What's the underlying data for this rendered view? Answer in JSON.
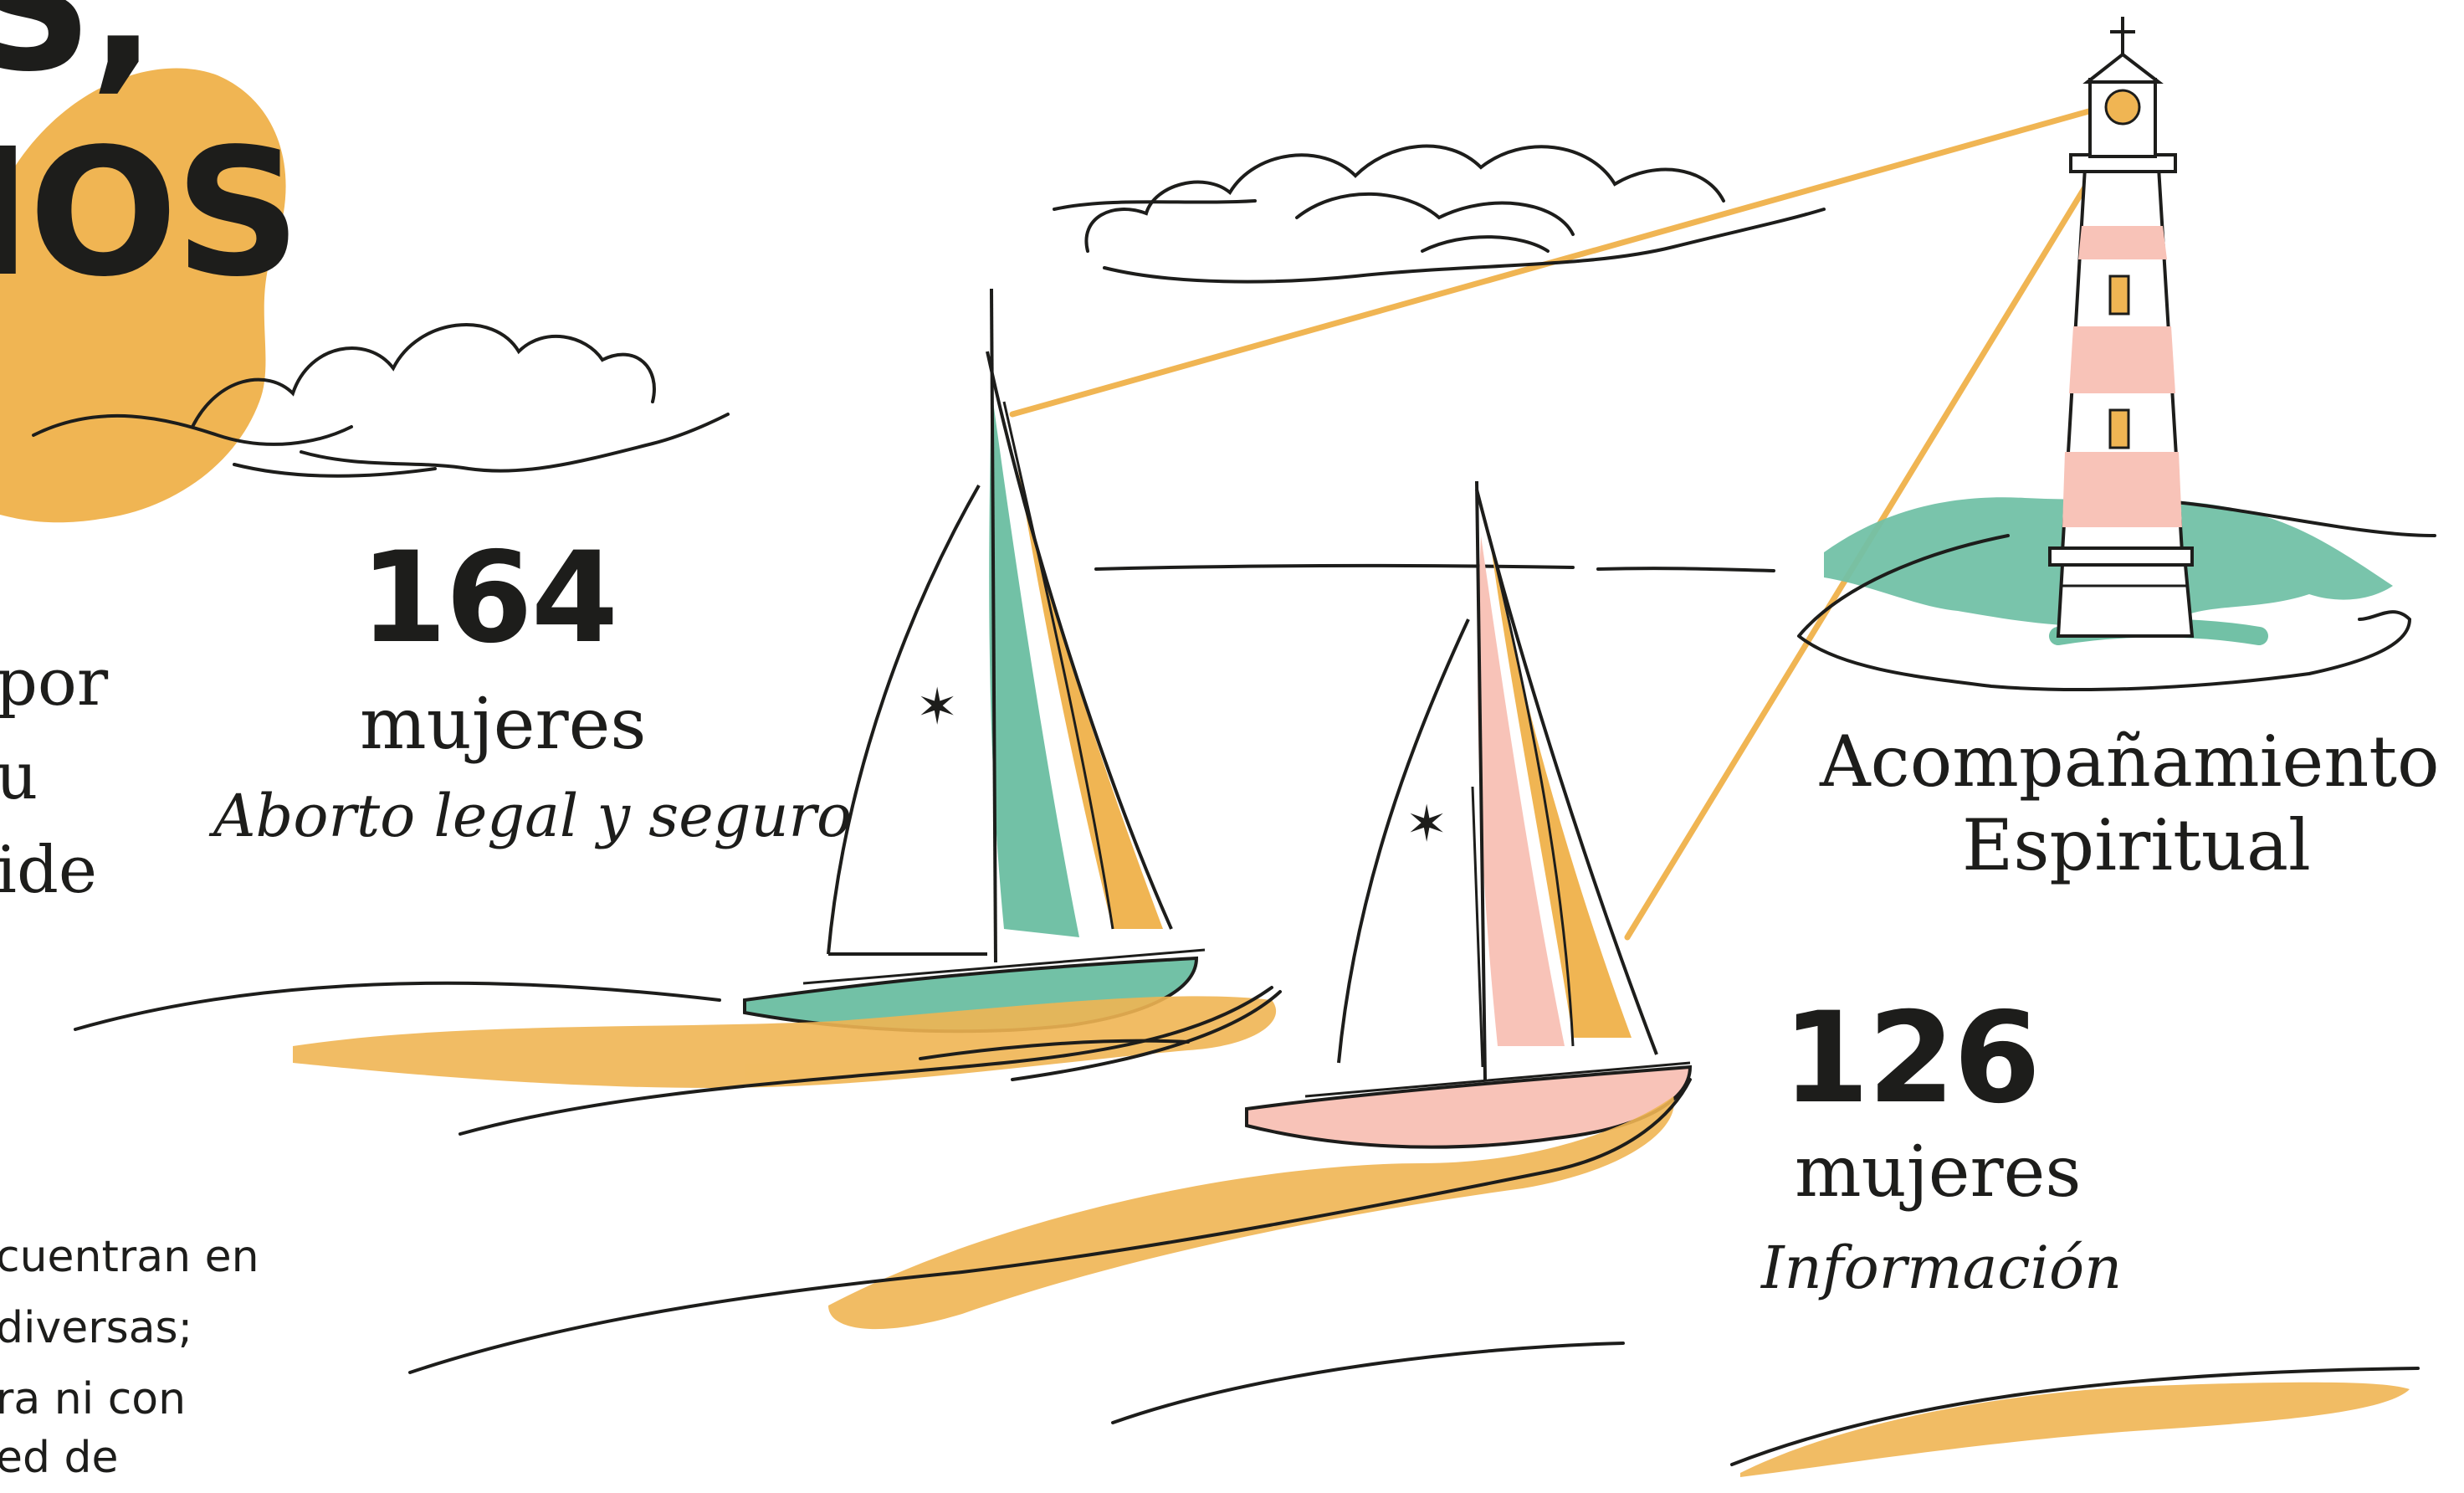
{
  "headline": {
    "line1": "S,",
    "line2": "IOS"
  },
  "stat_left": {
    "number": "164",
    "unit": "mujeres",
    "category": "Aborto legal y seguro"
  },
  "stat_right": {
    "number": "126",
    "unit": "mujeres",
    "category": "Información"
  },
  "lighthouse_label": {
    "line1": "Acompañamiento",
    "line2": "Espiritual"
  },
  "left_fragment": {
    "line1": "por",
    "line2": "u",
    "line3": "ide"
  },
  "bottom_fragment": {
    "line1": "cuentran en",
    "line2": " diversas;",
    "line3": "ra ni con",
    "line4": "ed de"
  },
  "colors": {
    "accent_yellow": "#f0b553",
    "mint_green": "#72c1a6",
    "salmon_pink": "#f8c3b8",
    "ink": "#1d1d1b"
  }
}
